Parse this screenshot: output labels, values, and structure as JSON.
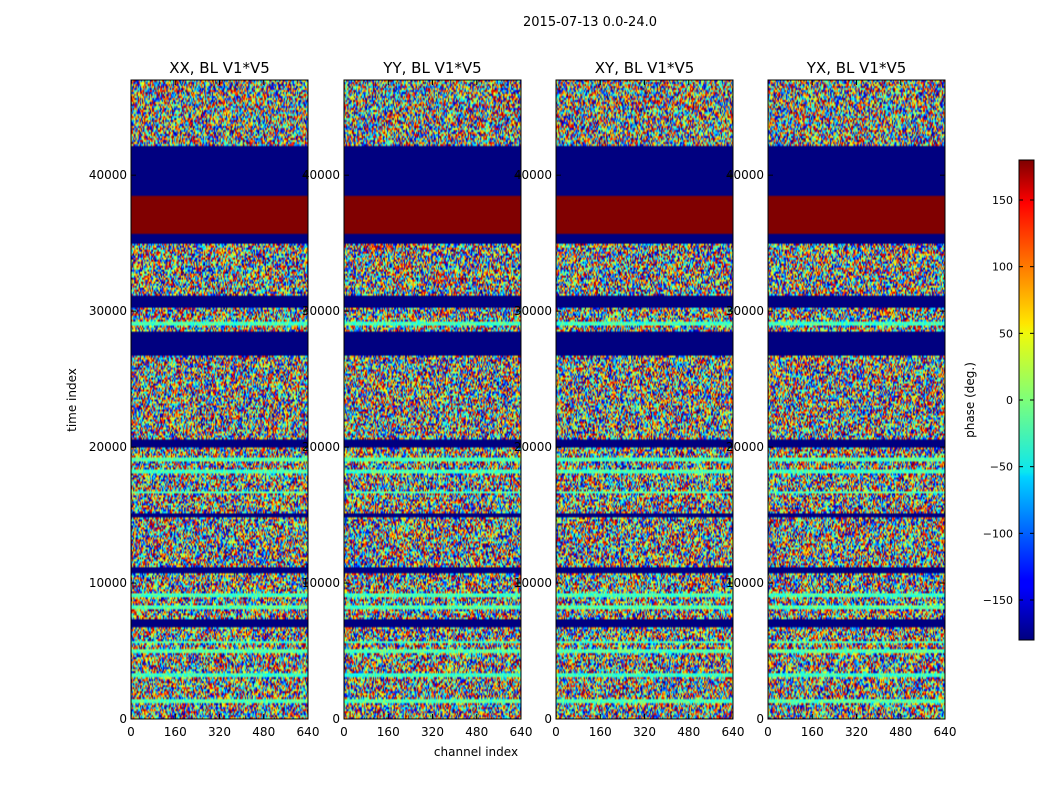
{
  "suptitle": "2015-07-13 0.0-24.0",
  "chart_data": {
    "type": "heatmap",
    "xlabel": "channel index",
    "ylabel": "time index",
    "xlim": [
      0,
      640
    ],
    "ylim": [
      0,
      47000
    ],
    "x_ticks": [
      "0",
      "160",
      "320",
      "480",
      "640"
    ],
    "y_ticks": [
      "0",
      "10000",
      "20000",
      "30000",
      "40000"
    ],
    "colormap": "jet",
    "colorbar": {
      "label": "phase (deg.)",
      "range": [
        -180,
        180
      ],
      "ticks": [
        "150",
        "100",
        "50",
        "0",
        "−50",
        "−100",
        "−150"
      ],
      "tick_values": [
        150,
        100,
        50,
        0,
        -50,
        -100,
        -150
      ]
    },
    "panels": [
      {
        "title": "XX, BL V1*V5"
      },
      {
        "title": "YY, BL V1*V5"
      },
      {
        "title": "XY, BL V1*V5"
      },
      {
        "title": "YX, BL V1*V5"
      }
    ],
    "uniform_bands": [
      {
        "from": 6700,
        "to": 7400,
        "phase": -180
      },
      {
        "from": 10700,
        "to": 11200,
        "phase": -180
      },
      {
        "from": 14900,
        "to": 15200,
        "phase": -180
      },
      {
        "from": 20000,
        "to": 20500,
        "phase": -180
      },
      {
        "from": 26800,
        "to": 28500,
        "phase": -180
      },
      {
        "from": 30200,
        "to": 31200,
        "phase": -180
      },
      {
        "from": 35000,
        "to": 35700,
        "phase": -180
      },
      {
        "from": 35700,
        "to": 38500,
        "phase": 180
      },
      {
        "from": 38500,
        "to": 42100,
        "phase": -180
      }
    ],
    "flat_bands": [
      {
        "from": 1200,
        "to": 1500,
        "phase": -15
      },
      {
        "from": 3100,
        "to": 3400,
        "phase": -25
      },
      {
        "from": 4800,
        "to": 5100,
        "phase": -15
      },
      {
        "from": 5600,
        "to": 5800,
        "phase": -20
      },
      {
        "from": 8100,
        "to": 8400,
        "phase": -15
      },
      {
        "from": 9000,
        "to": 9300,
        "phase": -20
      },
      {
        "from": 16600,
        "to": 16800,
        "phase": -15
      },
      {
        "from": 18000,
        "to": 18300,
        "phase": -20
      },
      {
        "from": 19000,
        "to": 19200,
        "phase": -15
      },
      {
        "from": 28900,
        "to": 29200,
        "phase": -20
      }
    ]
  }
}
